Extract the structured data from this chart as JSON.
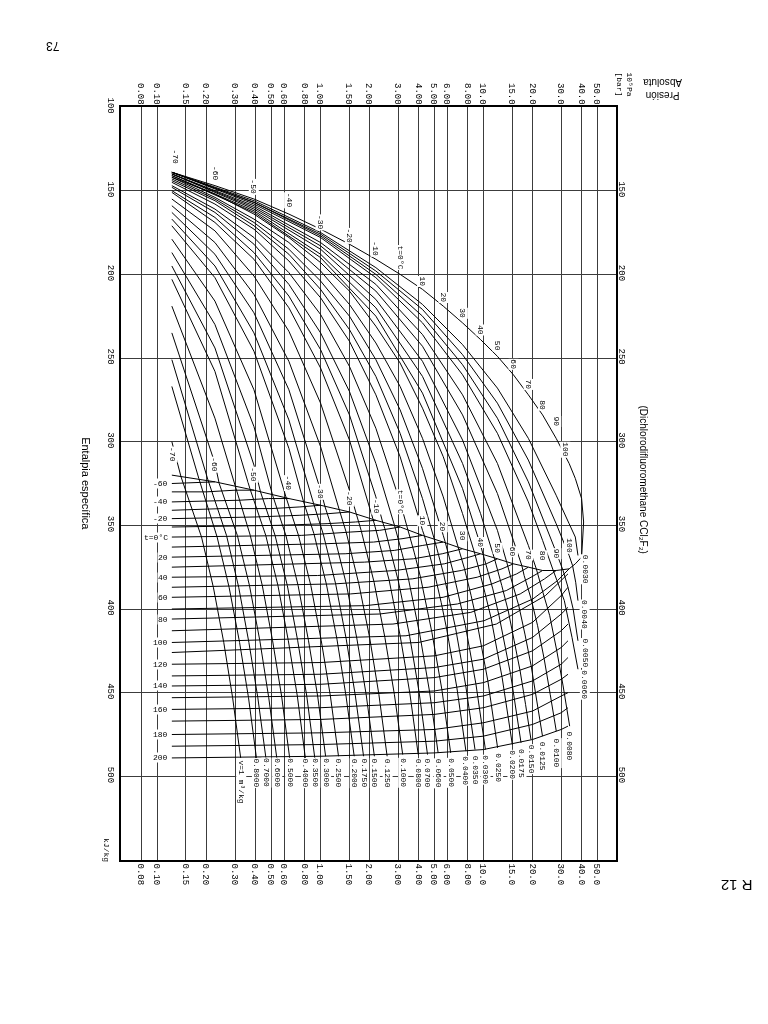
{
  "chart_data": {
    "type": "line",
    "title": "R 12",
    "subtitle": "(Dichlorodifluoromethane CCl₂F₂)",
    "xlabel": "Presión\nAbsoluta",
    "ylabel": "Entalpia específica",
    "log": "x",
    "grid": true,
    "xlim": [
      0.06,
      65
    ],
    "xticks": [
      {
        "value": 0.08,
        "label": "0.08"
      },
      {
        "value": 0.1,
        "label": "0.10"
      },
      {
        "value": 0.15,
        "label": "0.15"
      },
      {
        "value": 0.2,
        "label": "0.20"
      },
      {
        "value": 0.3,
        "label": "0.30"
      },
      {
        "value": 0.4,
        "label": "0.40"
      },
      {
        "value": 0.5,
        "label": "0.50"
      },
      {
        "value": 0.6,
        "label": "0.60"
      },
      {
        "value": 0.8,
        "label": "0.80"
      },
      {
        "value": 1,
        "label": "1.00"
      },
      {
        "value": 1.5,
        "label": "1.50"
      },
      {
        "value": 2,
        "label": "2.00"
      },
      {
        "value": 3,
        "label": "3.00"
      },
      {
        "value": 4,
        "label": "4.00"
      },
      {
        "value": 5,
        "label": "5.00"
      },
      {
        "value": 6,
        "label": "6.00"
      },
      {
        "value": 8,
        "label": "8.00"
      },
      {
        "value": 10,
        "label": "10.0"
      },
      {
        "value": 15,
        "label": "15.0"
      },
      {
        "value": 20,
        "label": "20.0"
      },
      {
        "value": 30,
        "label": "30.0"
      },
      {
        "value": 40,
        "label": "40.0"
      },
      {
        "value": 50,
        "label": "50.0"
      }
    ],
    "ylim": [
      550,
      100
    ],
    "yticks": [
      100,
      150,
      200,
      250,
      300,
      350,
      400,
      450,
      500
    ],
    "y2lim": [
      550,
      100
    ],
    "y2ticks": [
      150,
      200,
      250,
      300,
      350,
      400,
      450,
      500
    ],
    "annotations": [
      "10⁵Pa\n[bar]",
      "kJ/kg",
      "73",
      "v=1 m³/kg",
      {
        "text": "-70",
        "x": 0.13,
        "y": 130
      },
      {
        "text": "-60",
        "x": 0.226,
        "y": 140
      },
      {
        "text": "-50",
        "x": 0.392,
        "y": 148
      },
      {
        "text": "-40",
        "x": 0.642,
        "y": 156
      },
      {
        "text": "-30",
        "x": 1.004,
        "y": 169
      },
      {
        "text": "-20",
        "x": 1.509,
        "y": 177
      },
      {
        "text": "-10",
        "x": 2.191,
        "y": 185
      },
      {
        "text": "t=0°C",
        "x": 3.086,
        "y": 190
      },
      {
        "text": "10",
        "x": 4.233,
        "y": 204
      },
      {
        "text": "20",
        "x": 5.673,
        "y": 214
      },
      {
        "text": "30",
        "x": 7.449,
        "y": 223
      },
      {
        "text": "40",
        "x": 9.607,
        "y": 233
      },
      {
        "text": "50",
        "x": 12.19,
        "y": 243
      },
      {
        "text": "60",
        "x": 15.26,
        "y": 254
      },
      {
        "text": "70",
        "x": 18.86,
        "y": 266
      },
      {
        "text": "80",
        "x": 23.06,
        "y": 278
      },
      {
        "text": "90",
        "x": 27.92,
        "y": 288
      },
      {
        "text": "100",
        "x": 32,
        "y": 305
      },
      {
        "text": "-70",
        "x": 0.125,
        "y": 308
      },
      {
        "text": "-60",
        "x": 0.226,
        "y": 314
      },
      {
        "text": "-50",
        "x": 0.392,
        "y": 320
      },
      {
        "text": "-40",
        "x": 0.642,
        "y": 325
      },
      {
        "text": "-30",
        "x": 1.004,
        "y": 330
      },
      {
        "text": "-20",
        "x": 1.509,
        "y": 334
      },
      {
        "text": "-10",
        "x": 2.191,
        "y": 339
      },
      {
        "text": "t=0°C",
        "x": 3.086,
        "y": 336
      },
      {
        "text": "10",
        "x": 4.233,
        "y": 347
      },
      {
        "text": "20",
        "x": 5.673,
        "y": 351
      },
      {
        "text": "30",
        "x": 7.449,
        "y": 356
      },
      {
        "text": "40",
        "x": 9.607,
        "y": 360
      },
      {
        "text": "50",
        "x": 12.19,
        "y": 364
      },
      {
        "text": "60",
        "x": 15.26,
        "y": 366
      },
      {
        "text": "70",
        "x": 18.86,
        "y": 368
      },
      {
        "text": "80",
        "x": 23.06,
        "y": 368
      },
      {
        "text": "90",
        "x": 27.92,
        "y": 367
      },
      {
        "text": "100",
        "x": 33.53,
        "y": 362
      },
      {
        "text": "0.8000",
        "x": 0.406,
        "y": 498
      },
      {
        "text": "0.7000",
        "x": 0.464,
        "y": 498
      },
      {
        "text": "0.6000",
        "x": 0.541,
        "y": 498
      },
      {
        "text": "0.5000",
        "x": 0.649,
        "y": 498
      },
      {
        "text": "0.4000",
        "x": 0.81,
        "y": 498
      },
      {
        "text": "0.3500",
        "x": 0.925,
        "y": 498
      },
      {
        "text": "0.3000",
        "x": 1.078,
        "y": 498
      },
      {
        "text": "0.2500",
        "x": 1.293,
        "y": 498
      },
      {
        "text": "0.2000",
        "x": 1.614,
        "y": 498
      },
      {
        "text": "0.1750",
        "x": 1.842,
        "y": 498
      },
      {
        "text": "0.1500",
        "x": 2.146,
        "y": 498
      },
      {
        "text": "0.1250",
        "x": 2.569,
        "y": 498
      },
      {
        "text": "0.1000",
        "x": 3.201,
        "y": 498
      },
      {
        "text": "0.0800",
        "x": 3.985,
        "y": 498
      },
      {
        "text": "0.0700",
        "x": 4.542,
        "y": 498
      },
      {
        "text": "0.0600",
        "x": 5.279,
        "y": 498
      },
      {
        "text": "0.0500",
        "x": 6.301,
        "y": 498
      },
      {
        "text": "0.0400",
        "x": 7.815,
        "y": 497
      },
      {
        "text": "0.0350",
        "x": 8.881,
        "y": 496
      },
      {
        "text": "0.0300",
        "x": 10.29,
        "y": 496
      },
      {
        "text": "0.0250",
        "x": 12.22,
        "y": 495
      },
      {
        "text": "0.0200",
        "x": 15.04,
        "y": 493
      },
      {
        "text": "0.0175",
        "x": 17.01,
        "y": 492
      },
      {
        "text": "0.0150",
        "x": 19.57,
        "y": 490
      },
      {
        "text": "0.0125",
        "x": 23.03,
        "y": 488
      },
      {
        "text": "0.0100",
        "x": 27.98,
        "y": 486
      },
      {
        "text": "0.0080",
        "x": 33.79,
        "y": 482
      },
      {
        "text": "0.0060",
        "x": 42,
        "y": 445
      },
      {
        "text": "0.0050",
        "x": 42,
        "y": 426
      },
      {
        "text": "0.0040",
        "x": 42,
        "y": 403
      },
      {
        "text": "0.0030",
        "x": 42,
        "y": 376
      }
    ],
    "series": [
      {
        "color": "#000000",
        "x": [
          0.123,
          0.226,
          0.392,
          0.642,
          1.004,
          1.509,
          2.191,
          3.086,
          4.233,
          5.673,
          7.449,
          9.607,
          12.19,
          15.26,
          18.86,
          23.06,
          27.92,
          33.53,
          36.6,
          40.0,
          41.15,
          40.0,
          36.6,
          33.53,
          27.92,
          23.06,
          18.86,
          15.26,
          12.19,
          9.607,
          7.449,
          5.673,
          4.233,
          3.086,
          2.191,
          1.509,
          1.004,
          0.642,
          0.392,
          0.226,
          0.123
        ],
        "values": [
          139,
          147,
          155,
          164,
          173,
          182,
          191,
          200,
          209,
          219,
          229,
          239,
          249,
          260,
          272,
          284,
          298,
          313,
          322,
          334,
          348,
          369,
          373,
          376,
          377,
          377,
          375,
          373,
          370,
          367,
          364,
          360,
          356,
          351,
          347,
          342,
          338,
          334,
          329,
          324,
          320
        ]
      },
      {
        "name": "-60",
        "color": "#000000",
        "x": [
          0.123,
          0.226
        ],
        "values": [
          325,
          324
        ]
      },
      {
        "color": "#000000",
        "x": [
          0.123,
          0.2,
          0.3,
          0.392
        ],
        "values": [
          330,
          330,
          329,
          329
        ]
      },
      {
        "name": "-40",
        "color": "#000000",
        "x": [
          0.123,
          0.32,
          0.48,
          0.642
        ],
        "values": [
          336,
          335,
          334,
          334
        ]
      },
      {
        "color": "#000000",
        "x": [
          0.123,
          0.25,
          0.5,
          0.75,
          1.004
        ],
        "values": [
          341,
          340,
          340,
          339,
          338
        ]
      },
      {
        "name": "-20",
        "color": "#000000",
        "x": [
          0.123,
          0.4,
          0.75,
          1.13,
          1.509
        ],
        "values": [
          346,
          345,
          344,
          343,
          342
        ]
      },
      {
        "color": "#000000",
        "x": [
          0.123,
          0.55,
          1.1,
          1.64,
          2.191
        ],
        "values": [
          351,
          350,
          349,
          348,
          347
        ]
      },
      {
        "name": "t=0°C",
        "color": "#000000",
        "x": [
          0.123,
          0.77,
          1.54,
          2.31,
          3.086
        ],
        "values": [
          357,
          356,
          354,
          353,
          351
        ]
      },
      {
        "color": "#000000",
        "x": [
          0.123,
          1.06,
          2.12,
          3.17,
          4.233
        ],
        "values": [
          363,
          361,
          360,
          358,
          356
        ]
      },
      {
        "name": "20",
        "color": "#000000",
        "x": [
          0.123,
          1.42,
          2.84,
          4.25,
          5.673
        ],
        "values": [
          369,
          367,
          365,
          362,
          360
        ]
      },
      {
        "color": "#000000",
        "x": [
          0.123,
          1.86,
          3.72,
          5.59,
          7.449
        ],
        "values": [
          375,
          372,
          370,
          367,
          364
        ]
      },
      {
        "name": "40",
        "color": "#000000",
        "x": [
          0.123,
          0.96,
          2.88,
          5.76,
          8.17,
          9.607
        ],
        "values": [
          381,
          380,
          377,
          373,
          369,
          367
        ]
      },
      {
        "color": "#000000",
        "x": [
          0.123,
          1.22,
          3.66,
          7.31,
          10.4,
          12.19
        ],
        "values": [
          387,
          385,
          382,
          377,
          373,
          370
        ]
      },
      {
        "name": "60",
        "color": "#000000",
        "x": [
          0.123,
          1.53,
          4.58,
          9.16,
          13,
          15.26
        ],
        "values": [
          393,
          391,
          387,
          381,
          376,
          373
        ]
      },
      {
        "color": "#000000",
        "x": [
          0.123,
          1.89,
          5.66,
          11.3,
          16,
          18.86
        ],
        "values": [
          400,
          398,
          393,
          385,
          379,
          375
        ]
      },
      {
        "name": "80",
        "color": "#000000",
        "x": [
          0.123,
          2.31,
          6.92,
          13.8,
          19.6,
          23.06
        ],
        "values": [
          406,
          403,
          397,
          389,
          381,
          377
        ]
      },
      {
        "color": "#000000",
        "x": [
          0.123,
          2.79,
          8.38,
          16.8,
          23.7,
          27.92
        ],
        "values": [
          413,
          409,
          402,
          391,
          382,
          377
        ]
      },
      {
        "name": "100",
        "color": "#000000",
        "x": [
          0.123,
          3.35,
          10.1,
          20.1,
          28.5,
          33.53
        ],
        "values": [
          420,
          416,
          407,
          394,
          383,
          376
        ]
      },
      {
        "color": "#000000",
        "x": [
          0.123,
          4,
          12,
          24,
          33
        ],
        "values": [
          426,
          420,
          409,
          392,
          379
        ]
      },
      {
        "name": "120",
        "color": "#000000",
        "x": [
          0.123,
          1,
          5,
          10,
          20,
          30,
          33
        ],
        "values": [
          433,
          432,
          428,
          422,
          408,
          392,
          387
        ]
      },
      {
        "color": "#000000",
        "x": [
          0.123,
          1,
          5,
          10,
          20,
          30,
          33
        ],
        "values": [
          440,
          439,
          435,
          430,
          417,
          403,
          399
        ]
      },
      {
        "name": "140",
        "color": "#000000",
        "x": [
          0.123,
          1,
          5,
          10,
          20,
          30,
          33
        ],
        "values": [
          446,
          445,
          441,
          436,
          425,
          413,
          409
        ]
      },
      {
        "color": "#000000",
        "x": [
          0.123,
          1,
          5,
          10,
          20,
          30,
          33
        ],
        "values": [
          453,
          452,
          449,
          444,
          434,
          423,
          419
        ]
      },
      {
        "name": "160",
        "color": "#000000",
        "x": [
          0.123,
          1,
          5,
          10,
          20,
          30,
          33
        ],
        "values": [
          460,
          459,
          456,
          452,
          443,
          433,
          429
        ]
      },
      {
        "color": "#000000",
        "x": [
          0.123,
          1,
          5,
          10,
          20,
          30,
          33
        ],
        "values": [
          467,
          466,
          463,
          459,
          451,
          442,
          439
        ]
      },
      {
        "name": "180",
        "color": "#000000",
        "x": [
          0.123,
          1,
          5,
          10,
          20,
          30,
          33
        ],
        "values": [
          475,
          474,
          472,
          468,
          461,
          452,
          450
        ]
      },
      {
        "color": "#000000",
        "x": [
          0.123,
          1,
          5,
          10,
          20,
          30,
          33
        ],
        "values": [
          482,
          481,
          479,
          476,
          469,
          462,
          459
        ]
      },
      {
        "name": "200",
        "color": "#000000",
        "x": [
          0.123,
          1,
          5,
          10,
          20,
          30,
          33
        ],
        "values": [
          489,
          488,
          486,
          484,
          478,
          472,
          470
        ]
      },
      {
        "color": "#000000",
        "x": [
          0.123,
          0.14,
          0.187,
          0.221,
          0.256,
          0.29,
          0.325
        ],
        "values": [
          300,
          321,
          357,
          387,
          420,
          453,
          489
        ]
      },
      {
        "color": "#000000",
        "x": [
          0.123,
          0.18,
          0.233,
          0.276,
          0.32,
          0.363,
          0.406
        ],
        "values": [
          267,
          322,
          357,
          387,
          420,
          453,
          489
        ]
      },
      {
        "color": "#000000",
        "x": [
          0.123,
          0.205,
          0.266,
          0.316,
          0.365,
          0.414,
          0.464
        ],
        "values": [
          251,
          323,
          356,
          387,
          420,
          453,
          489
        ]
      },
      {
        "color": "#000000",
        "x": [
          0.123,
          0.226,
          0.24,
          0.31,
          0.368,
          0.426,
          0.483,
          0.541
        ],
        "values": [
          235,
          313,
          325,
          356,
          386,
          419,
          453,
          489
        ]
      },
      {
        "color": "#000000",
        "x": [
          0.123,
          0.226,
          0.3,
          0.372,
          0.441,
          0.51,
          0.579,
          0.649
        ],
        "values": [
          219,
          286,
          326,
          356,
          386,
          419,
          452,
          489
        ]
      },
      {
        "color": "#000000",
        "x": [
          0.123,
          0.226,
          0.37,
          0.463,
          0.55,
          0.637,
          0.723,
          0.81
        ],
        "values": [
          203,
          258,
          328,
          356,
          386,
          419,
          452,
          489
        ]
      },
      {
        "color": "#000000",
        "x": [
          0.123,
          0.226,
          0.392,
          0.43,
          0.528,
          0.628,
          0.727,
          0.826,
          0.925
        ],
        "values": [
          195,
          244,
          314,
          330,
          356,
          386,
          419,
          452,
          489
        ]
      },
      {
        "color": "#000000",
        "x": [
          0.123,
          0.226,
          0.392,
          0.51,
          0.615,
          0.731,
          0.847,
          0.963,
          1.078
        ],
        "values": [
          187,
          230,
          291,
          332,
          356,
          386,
          419,
          452,
          488
        ]
      },
      {
        "color": "#000000",
        "x": [
          0.123,
          0.226,
          0.392,
          0.62,
          0.735,
          0.875,
          1.014,
          1.153,
          1.293
        ],
        "values": [
          179,
          216,
          269,
          334,
          356,
          386,
          419,
          452,
          488
        ]
      },
      {
        "color": "#000000",
        "x": [
          0.123,
          0.226,
          0.392,
          0.642,
          0.79,
          0.914,
          1.089,
          1.265,
          1.438,
          1.614
        ],
        "values": [
          171,
          202,
          246,
          304,
          336,
          355,
          385,
          418,
          452,
          488
        ]
      },
      {
        "color": "#000000",
        "x": [
          0.123,
          0.226,
          0.392,
          0.642,
          0.91,
          1.041,
          1.242,
          1.442,
          1.641,
          1.842
        ],
        "values": [
          167,
          195,
          235,
          287,
          337,
          355,
          385,
          418,
          452,
          488
        ]
      },
      {
        "color": "#000000",
        "x": [
          0.123,
          0.226,
          0.392,
          0.642,
          1.004,
          1.07,
          1.209,
          1.443,
          1.678,
          1.91,
          2.146
        ],
        "values": [
          163,
          188,
          223,
          269,
          329,
          339,
          355,
          385,
          418,
          451,
          488
        ]
      },
      {
        "color": "#000000",
        "x": [
          0.123,
          0.226,
          0.392,
          0.642,
          1.004,
          1.31,
          1.44,
          1.723,
          2.006,
          2.286,
          2.569
        ],
        "values": [
          159,
          181,
          212,
          252,
          303,
          341,
          354,
          385,
          417,
          451,
          488
        ]
      },
      {
        "color": "#000000",
        "x": [
          0.123,
          0.226,
          0.392,
          0.642,
          1.004,
          1.509,
          1.66,
          1.78,
          2.137,
          2.489,
          2.845,
          3.201
        ],
        "values": [
          155,
          174,
          201,
          234,
          277,
          329,
          343,
          353,
          384,
          417,
          451,
          487
        ]
      },
      {
        "color": "#000000",
        "x": [
          0.123,
          0.226,
          0.392,
          0.642,
          1.004,
          1.509,
          2.1,
          2.197,
          2.646,
          3.088,
          3.536,
          3.985
        ],
        "values": [
          151,
          169,
          191,
          220,
          256,
          299,
          346,
          353,
          383,
          416,
          450,
          487
        ]
      },
      {
        "color": "#000000",
        "x": [
          0.123,
          0.226,
          0.392,
          0.642,
          1.004,
          1.509,
          2.191,
          2.41,
          2.487,
          3.004,
          3.511,
          4.024,
          4.542
        ],
        "values": [
          150,
          166,
          187,
          213,
          245,
          284,
          333,
          348,
          352,
          383,
          415,
          449,
          487
        ]
      },
      {
        "color": "#000000",
        "x": [
          0.123,
          0.226,
          0.392,
          0.642,
          1.004,
          1.509,
          2.191,
          2.85,
          3.178,
          3.471,
          4.07,
          4.669,
          5.279
        ],
        "values": [
          148,
          163,
          182,
          206,
          235,
          270,
          313,
          350,
          367,
          382,
          415,
          449,
          486
        ]
      },
      {
        "color": "#000000",
        "x": [
          0.123,
          0.226,
          0.392,
          0.642,
          1.004,
          1.509,
          2.191,
          3.086,
          3.45,
          3.761,
          4.115,
          4.834,
          5.561,
          6.301
        ],
        "values": [
          147,
          161,
          178,
          199,
          224,
          255,
          292,
          336,
          353,
          366,
          381,
          414,
          448,
          486
        ]
      },
      {
        "color": "#000000",
        "x": [
          0.123,
          0.226,
          0.392,
          0.642,
          1.004,
          1.509,
          2.191,
          3.086,
          4.233,
          4.34,
          4.606,
          5.05,
          5.507,
          5.956,
          6.875,
          7.815
        ],
        "values": [
          145,
          158,
          173,
          192,
          214,
          240,
          272,
          309,
          353,
          356,
          365,
          380,
          396,
          412,
          447,
          485
        ]
      },
      {
        "color": "#000000",
        "x": [
          0.123,
          0.226,
          0.392,
          0.642,
          1.004,
          1.509,
          2.191,
          3.086,
          4.233,
          4.99,
          5.188,
          5.697,
          6.738,
          7.796,
          8.881
        ],
        "values": [
          144,
          156,
          171,
          188,
          209,
          233,
          261,
          295,
          334,
          358,
          364,
          379,
          411,
          446,
          484
        ]
      },
      {
        "color": "#000000",
        "x": [
          0.123,
          0.226,
          0.392,
          0.642,
          1.004,
          1.509,
          2.191,
          3.086,
          4.233,
          5.673,
          5.83,
          6.536,
          7.757,
          9.002,
          10.29
        ],
        "values": [
          143,
          155,
          169,
          185,
          204,
          225,
          251,
          281,
          316,
          356,
          360,
          378,
          410,
          445,
          484
        ]
      },
      {
        "color": "#000000",
        "x": [
          0.123,
          0.226,
          0.392,
          0.642,
          1.004,
          1.509,
          2.191,
          3.086,
          4.233,
          5.673,
          7.0,
          7.662,
          8.408,
          9.138,
          10.65,
          12.22
        ],
        "values": [
          142,
          154,
          167,
          181,
          198,
          218,
          241,
          267,
          298,
          333,
          363,
          376,
          392,
          408,
          443,
          483
        ]
      },
      {
        "color": "#000000",
        "x": [
          0.123,
          0.226,
          0.392,
          0.642,
          1.004,
          1.509,
          2.191,
          3.086,
          4.233,
          5.673,
          7.449,
          8.8,
          9.258,
          10.2,
          11.12,
          13.03,
          15.04
        ],
        "values": [
          142,
          152,
          164,
          178,
          193,
          210,
          231,
          253,
          280,
          309,
          343,
          366,
          374,
          390,
          405,
          441,
          481
        ]
      },
      {
        "color": "#000000",
        "x": [
          0.123,
          0.392,
          1.004,
          2.191,
          4.233,
          7.449,
          9.607,
          10.0,
          10.34,
          11.42,
          12.47,
          14.68,
          17.01
        ],
        "values": [
          141,
          163,
          190,
          225,
          271,
          328,
          362,
          368,
          373,
          388,
          404,
          439,
          480
        ]
      },
      {
        "color": "#000000",
        "x": [
          0.123,
          0.392,
          1.004,
          2.191,
          4.233,
          7.449,
          9.607,
          11.7,
          12.96,
          14.19,
          15.44,
          16.79,
          18.13,
          19.57
        ],
        "values": [
          141,
          162,
          188,
          220,
          261,
          313,
          343,
          370,
          386,
          401,
          419,
          437,
          457,
          478
        ]
      },
      {
        "color": "#000000",
        "x": [
          0.123,
          0.392,
          1.004,
          2.191,
          4.233,
          7.449,
          12.19,
          13.9,
          14.99,
          16.47,
          17.97,
          19.63,
          21.25,
          23.03
        ],
        "values": [
          140,
          161,
          185,
          215,
          252,
          299,
          353,
          372,
          384,
          398,
          415,
          434,
          455,
          476
        ]
      },
      {
        "color": "#000000",
        "x": [
          0.123,
          0.392,
          1.004,
          2.191,
          4.233,
          7.449,
          12.19,
          15.26,
          17.2,
          17.77,
          19.62,
          21.49,
          23.6,
          25.68,
          27.98
        ],
        "values": [
          140,
          160,
          183,
          210,
          243,
          284,
          331,
          359,
          374,
          380,
          394,
          410,
          430,
          451,
          473
        ]
      },
      {
        "color": "#000000",
        "x": [
          0.123,
          0.392,
          1.004,
          2.191,
          4.233,
          7.449,
          12.19,
          18.86,
          21.1,
          23.16,
          25.5,
          28.18,
          30.81,
          33.79
        ],
        "values": [
          140,
          159,
          181,
          206,
          236,
          272,
          313,
          362,
          376,
          390,
          404,
          425,
          446,
          470
        ]
      },
      {
        "color": "#000000",
        "x": [
          0.123,
          0.392,
          1.004,
          2.191,
          4.233,
          7.449,
          12.19,
          18.86,
          23.06,
          26.8,
          28.26,
          31.34,
          34.94,
          38
        ],
        "values": [
          139,
          158,
          178,
          202,
          229,
          260,
          295,
          336,
          359,
          377,
          383,
          395,
          417,
          436
        ]
      },
      {
        "color": "#000000",
        "x": [
          0.123,
          0.392,
          1.004,
          2.191,
          4.233,
          7.449,
          12.19,
          18.86,
          27.92,
          30.8,
          33,
          35.5,
          38
        ],
        "values": [
          139,
          157,
          177,
          200,
          225,
          254,
          286,
          324,
          366,
          377,
          387,
          400,
          419
        ]
      },
      {
        "color": "#000000",
        "x": [
          0.123,
          0.392,
          1.004,
          2.191,
          4.233,
          7.449,
          12.19,
          18.86,
          27.92,
          33.53,
          35.2,
          36.8,
          38
        ],
        "values": [
          139,
          157,
          176,
          198,
          221,
          248,
          277,
          311,
          349,
          368,
          374,
          384,
          395
        ]
      },
      {
        "color": "#000000",
        "x": [
          0.123,
          0.392,
          1.004,
          2.191,
          4.233,
          7.449,
          12.19,
          18.86,
          27.92,
          33.53,
          36.6,
          38
        ],
        "values": [
          139,
          156,
          175,
          196,
          218,
          242,
          268,
          298,
          332,
          349,
          357,
          368
        ]
      }
    ]
  }
}
